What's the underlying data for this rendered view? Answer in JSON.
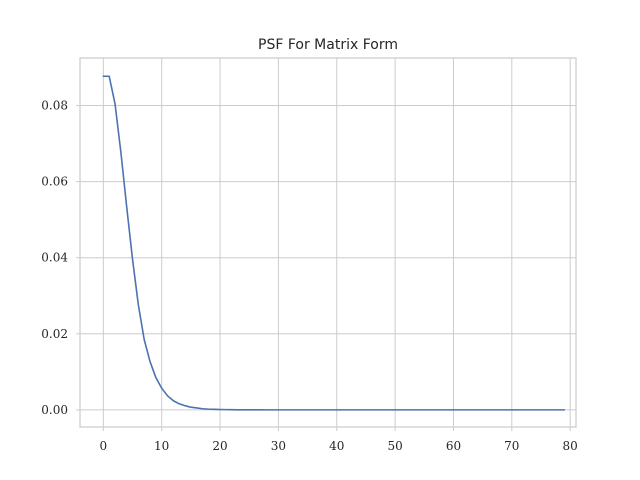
{
  "chart_data": {
    "type": "line",
    "title": "PSF For Matrix Form",
    "xlabel": "",
    "ylabel": "",
    "xlim": [
      -4,
      81
    ],
    "ylim": [
      -0.0045,
      0.0925
    ],
    "xticks": [
      0,
      10,
      20,
      30,
      40,
      50,
      60,
      70,
      80
    ],
    "xtick_labels": [
      "0",
      "10",
      "20",
      "30",
      "40",
      "50",
      "60",
      "70",
      "80"
    ],
    "yticks": [
      0.0,
      0.02,
      0.04,
      0.06,
      0.08
    ],
    "ytick_labels": [
      "0.00",
      "0.02",
      "0.04",
      "0.06",
      "0.08"
    ],
    "grid": true,
    "legend": "none",
    "series": [
      {
        "color": "#4c72b0",
        "x": [
          0,
          1,
          2,
          3,
          4,
          5,
          6,
          7,
          8,
          9,
          10,
          11,
          12,
          13,
          14,
          15,
          16,
          17,
          18,
          19,
          20,
          21,
          22,
          23,
          24,
          25,
          26,
          27,
          28,
          29,
          30,
          31,
          32,
          33,
          34,
          35,
          36,
          37,
          38,
          39,
          40,
          41,
          42,
          43,
          44,
          45,
          46,
          47,
          48,
          49,
          50,
          51,
          52,
          53,
          54,
          55,
          56,
          57,
          58,
          59,
          60,
          61,
          62,
          63,
          64,
          65,
          66,
          67,
          68,
          69,
          70,
          71,
          72,
          73,
          74,
          75,
          76,
          77,
          78,
          79
        ],
        "values": [
          0.0877,
          0.0877,
          0.0805,
          0.0678,
          0.0534,
          0.0396,
          0.0276,
          0.0185,
          0.0127,
          0.0085,
          0.0057,
          0.0037,
          0.0024,
          0.0016,
          0.0011,
          0.0007,
          0.0005,
          0.0003,
          0.0002,
          0.00015,
          0.0001,
          7e-05,
          5e-05,
          3e-05,
          2e-05,
          1e-05,
          1e-05,
          5e-06,
          3e-06,
          2e-06,
          1e-06,
          0,
          0,
          0,
          0,
          0,
          0,
          0,
          0,
          0,
          0,
          0,
          0,
          0,
          0,
          0,
          0,
          0,
          0,
          0,
          0,
          0,
          0,
          0,
          0,
          0,
          0,
          0,
          0,
          0,
          0,
          0,
          0,
          0,
          0,
          0,
          0,
          0,
          0,
          0,
          0,
          0,
          0,
          0,
          0,
          0,
          0,
          0,
          0,
          0
        ]
      }
    ]
  }
}
